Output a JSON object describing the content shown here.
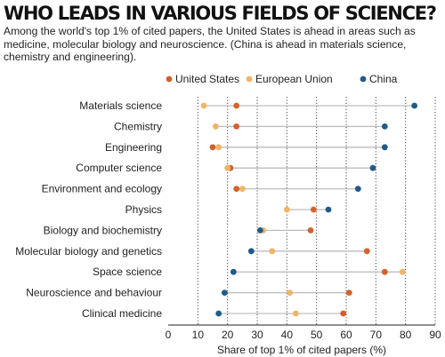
{
  "chart_data": {
    "type": "dot",
    "title": "WHO LEADS IN VARIOUS FIELDS OF SCIENCE?",
    "subtitle": "Among the world's top 1% of cited papers, the United States is ahead in areas such as medicine, molecular biology and neuroscience. (China is ahead in materials science, chemistry and engineering).",
    "xlabel": "Share of top 1% of cited papers (%)",
    "xlim": [
      0,
      90
    ],
    "xticks": [
      0,
      10,
      20,
      30,
      40,
      50,
      60,
      70,
      80,
      90
    ],
    "legend_position": "top",
    "grid": "dotted vertical",
    "categories": [
      "Materials science",
      "Chemistry",
      "Engineering",
      "Computer science",
      "Environment and ecology",
      "Physics",
      "Biology and biochemistry",
      "Molecular biology and genetics",
      "Space science",
      "Neuroscience and behaviour",
      "Clinical medicine"
    ],
    "series": [
      {
        "name": "United States",
        "color": "#d2622b",
        "values": [
          23,
          23,
          15,
          21,
          23,
          49,
          48,
          67,
          73,
          61,
          59
        ]
      },
      {
        "name": "European Union",
        "color": "#f0b466",
        "values": [
          12,
          16,
          17,
          20,
          25,
          40,
          32,
          35,
          79,
          41,
          43
        ]
      },
      {
        "name": "China",
        "color": "#1f5b8a",
        "values": [
          83,
          73,
          73,
          69,
          64,
          54,
          31,
          28,
          22,
          19,
          17
        ]
      }
    ]
  }
}
